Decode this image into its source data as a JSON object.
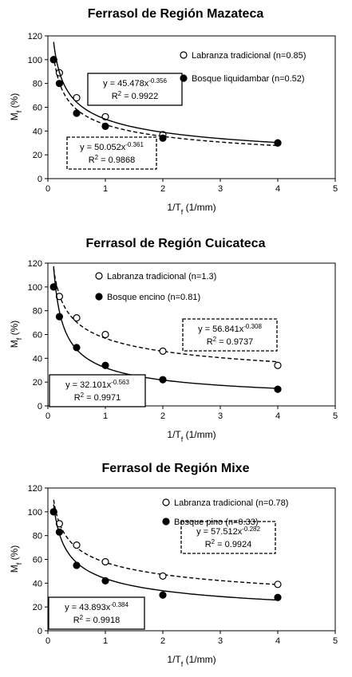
{
  "chart_data": [
    {
      "type": "scatter",
      "title": "Ferrasol de Región Mazateca",
      "xlabel": "1/T",
      "xlabel_sub": "f",
      "xlabel_unit": " (1/mm)",
      "ylabel": "M",
      "ylabel_sub": "f",
      "ylabel_unit": " (%)",
      "xlim": [
        0,
        5
      ],
      "ylim": [
        0,
        120
      ],
      "xticks": [
        "0",
        "1",
        "2",
        "3",
        "4",
        "5"
      ],
      "yticks": [
        "0",
        "20",
        "40",
        "60",
        "80",
        "100",
        "120"
      ],
      "legend_position": "top-right",
      "series": [
        {
          "name": "Labranza tradicional (n=0.85)",
          "marker": "open",
          "line": "dashed",
          "x": [
            0.1,
            0.2,
            0.5,
            1,
            2,
            4
          ],
          "y": [
            100,
            89,
            68,
            52,
            37,
            30
          ],
          "fit": {
            "a": 45.478,
            "b": -0.356
          },
          "equation": "y = 45.478x",
          "exponent": "-0.356",
          "r2_label": "R",
          "r2_value": " = 0.9922",
          "box_style": "solid"
        },
        {
          "name": "Bosque liquidambar (n=0.52)",
          "marker": "filled",
          "line": "solid",
          "x": [
            0.1,
            0.2,
            0.5,
            1,
            2,
            4
          ],
          "y": [
            100,
            80,
            55,
            44,
            34,
            30
          ],
          "fit": {
            "a": 50.052,
            "b": -0.361
          },
          "equation": "y = 50.052x",
          "exponent": "-0.361",
          "r2_label": "R",
          "r2_value": " = 0.9868",
          "box_style": "dashed"
        }
      ]
    },
    {
      "type": "scatter",
      "title": "Ferrasol de Región Cuicateca",
      "xlabel": "1/T",
      "xlabel_sub": "f",
      "xlabel_unit": " (1/mm)",
      "ylabel": "M",
      "ylabel_sub": "f",
      "ylabel_unit": " (%)",
      "xlim": [
        0,
        5
      ],
      "ylim": [
        0,
        120
      ],
      "xticks": [
        "0",
        "1",
        "2",
        "3",
        "4",
        "5"
      ],
      "yticks": [
        "0",
        "20",
        "40",
        "60",
        "80",
        "100",
        "120"
      ],
      "legend_position": "top-center",
      "series": [
        {
          "name": "Labranza tradicional (n=1.3)",
          "marker": "open",
          "line": "dashed",
          "x": [
            0.1,
            0.2,
            0.5,
            1,
            2,
            4
          ],
          "y": [
            100,
            92,
            74,
            60,
            46,
            34
          ],
          "fit": {
            "a": 56.841,
            "b": -0.308
          },
          "equation": "y = 56.841x",
          "exponent": "-0.308",
          "r2_label": "R",
          "r2_value": " = 0.9737",
          "box_style": "dashed"
        },
        {
          "name": "Bosque encino (n=0.81)",
          "marker": "filled",
          "line": "solid",
          "x": [
            0.1,
            0.2,
            0.5,
            1,
            2,
            4
          ],
          "y": [
            100,
            75,
            49,
            34,
            22,
            14
          ],
          "fit": {
            "a": 32.101,
            "b": -0.563
          },
          "equation": "y = 32.101x",
          "exponent": "-0.563",
          "r2_label": "R",
          "r2_value": " = 0.9971",
          "box_style": "solid"
        }
      ]
    },
    {
      "type": "scatter",
      "title": "Ferrasol de Región Mixe",
      "xlabel": "1/T",
      "xlabel_sub": "f",
      "xlabel_unit": " (1/mm)",
      "ylabel": "M",
      "ylabel_sub": "f",
      "ylabel_unit": " (%)",
      "xlim": [
        0,
        5
      ],
      "ylim": [
        0,
        120
      ],
      "xticks": [
        "0",
        "1",
        "2",
        "3",
        "4",
        "5"
      ],
      "yticks": [
        "0",
        "20",
        "40",
        "60",
        "80",
        "100",
        "120"
      ],
      "legend_position": "top-center",
      "series": [
        {
          "name": "Labranza tradicional (n=0.78)",
          "marker": "open",
          "line": "dashed",
          "x": [
            0.1,
            0.2,
            0.5,
            1,
            2,
            4
          ],
          "y": [
            100,
            90,
            72,
            58,
            46,
            39
          ],
          "fit": {
            "a": 57.512,
            "b": -0.282
          },
          "equation": "y = 57.512x",
          "exponent": "-0.282",
          "r2_label": "R",
          "r2_value": " = 0.9924",
          "box_style": "dashed"
        },
        {
          "name": "Bosque pino (n=0.33)",
          "marker": "filled",
          "line": "solid",
          "x": [
            0.1,
            0.2,
            0.5,
            1,
            2,
            4
          ],
          "y": [
            100,
            83,
            55,
            42,
            30,
            28
          ],
          "fit": {
            "a": 43.893,
            "b": -0.384
          },
          "equation": "y = 43.893x",
          "exponent": "-0.384",
          "r2_label": "R",
          "r2_value": " = 0.9918",
          "box_style": "solid"
        }
      ]
    }
  ]
}
